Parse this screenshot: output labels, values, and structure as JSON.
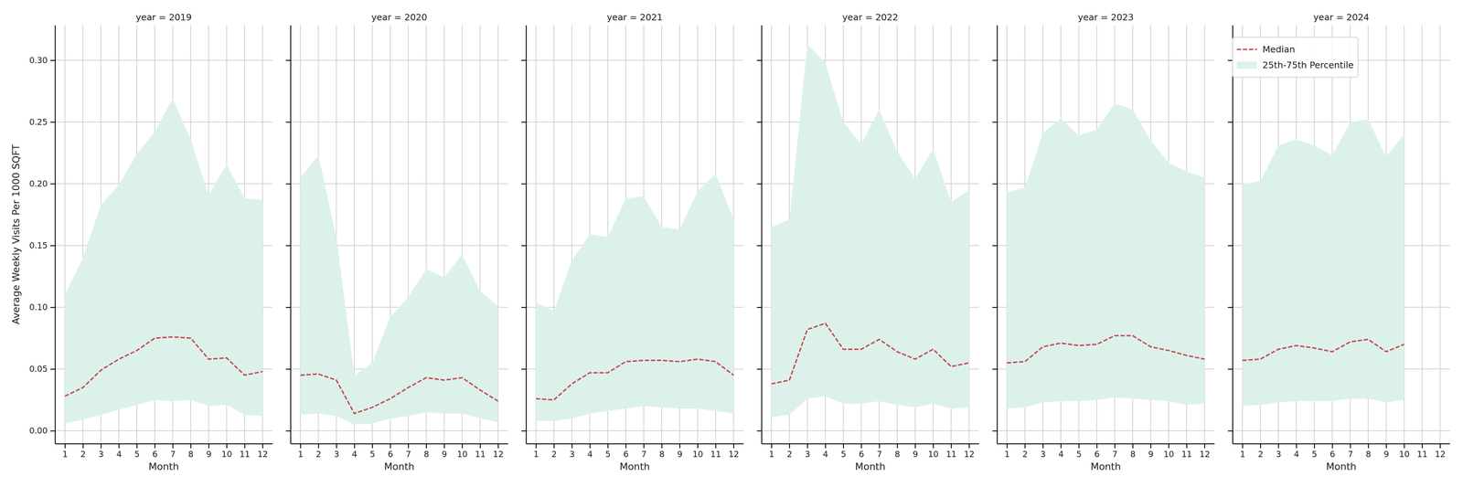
{
  "chart_data": [
    {
      "type": "line",
      "title": "year = 2019",
      "x_label": "Month",
      "y_label": "Average Weekly Visits Per 1000 SQFT",
      "x": [
        1,
        2,
        3,
        4,
        5,
        6,
        7,
        8,
        9,
        10,
        11,
        12
      ],
      "xlim": [
        0.45,
        12.55
      ],
      "ylim": [
        -0.0104,
        0.3284
      ],
      "xticks": [
        1,
        2,
        3,
        4,
        5,
        6,
        7,
        8,
        9,
        10,
        11,
        12
      ],
      "yticks": [
        {
          "value": 0,
          "label": "0.00"
        },
        {
          "value": 0.05,
          "label": "0.05"
        },
        {
          "value": 0.1,
          "label": "0.10"
        },
        {
          "value": 0.15,
          "label": "0.15"
        },
        {
          "value": 0.2,
          "label": "0.20"
        },
        {
          "value": 0.25,
          "label": "0.25"
        },
        {
          "value": 0.3,
          "label": "0.30"
        }
      ],
      "grid": true,
      "series": [
        {
          "type": "area",
          "color": "#ddf1eb",
          "lower": [
            0.006,
            0.009,
            0.013,
            0.017,
            0.021,
            0.025,
            0.024,
            0.025,
            0.02,
            0.021,
            0.013,
            0.012
          ],
          "upper": [
            0.11,
            0.14,
            0.183,
            0.199,
            0.224,
            0.242,
            0.269,
            0.236,
            0.191,
            0.216,
            0.188,
            0.187
          ]
        },
        {
          "type": "line",
          "color": "#c44e52",
          "line_style": "dashed",
          "values": [
            0.028,
            0.035,
            0.049,
            0.058,
            0.065,
            0.075,
            0.076,
            0.075,
            0.058,
            0.059,
            0.045,
            0.048
          ]
        }
      ]
    },
    {
      "type": "line",
      "title": "year = 2020",
      "x_label": "Month",
      "tick_labels": "x",
      "x": [
        1,
        2,
        3,
        4,
        5,
        6,
        7,
        8,
        9,
        10,
        11,
        12
      ],
      "xlim": [
        0.45,
        12.55
      ],
      "ylim": [
        -0.0104,
        0.3284
      ],
      "xticks": [
        1,
        2,
        3,
        4,
        5,
        6,
        7,
        8,
        9,
        10,
        11,
        12
      ],
      "yticks": [
        0,
        0.05,
        0.1,
        0.15,
        0.2,
        0.25,
        0.3
      ],
      "grid": true,
      "series": [
        {
          "type": "area",
          "color": "#ddf1eb",
          "lower": [
            0.013,
            0.014,
            0.012,
            0.005,
            0.006,
            0.01,
            0.012,
            0.015,
            0.014,
            0.014,
            0.01,
            0.007
          ],
          "upper": [
            0.205,
            0.223,
            0.157,
            0.045,
            0.055,
            0.092,
            0.108,
            0.131,
            0.124,
            0.143,
            0.113,
            0.101
          ]
        },
        {
          "type": "line",
          "color": "#c44e52",
          "line_style": "dashed",
          "values": [
            0.045,
            0.046,
            0.041,
            0.014,
            0.019,
            0.026,
            0.035,
            0.043,
            0.041,
            0.043,
            0.033,
            0.024
          ]
        }
      ]
    },
    {
      "type": "line",
      "title": "year = 2021",
      "x_label": "Month",
      "tick_labels": "x",
      "x": [
        1,
        2,
        3,
        4,
        5,
        6,
        7,
        8,
        9,
        10,
        11,
        12
      ],
      "xlim": [
        0.45,
        12.55
      ],
      "ylim": [
        -0.0104,
        0.3284
      ],
      "xticks": [
        1,
        2,
        3,
        4,
        5,
        6,
        7,
        8,
        9,
        10,
        11,
        12
      ],
      "yticks": [
        0,
        0.05,
        0.1,
        0.15,
        0.2,
        0.25,
        0.3
      ],
      "grid": true,
      "series": [
        {
          "type": "area",
          "color": "#ddf1eb",
          "lower": [
            0.008,
            0.008,
            0.01,
            0.014,
            0.016,
            0.018,
            0.02,
            0.019,
            0.018,
            0.018,
            0.016,
            0.014
          ],
          "upper": [
            0.104,
            0.097,
            0.138,
            0.159,
            0.157,
            0.188,
            0.19,
            0.165,
            0.163,
            0.194,
            0.208,
            0.171
          ]
        },
        {
          "type": "line",
          "color": "#c44e52",
          "line_style": "dashed",
          "values": [
            0.026,
            0.025,
            0.038,
            0.047,
            0.047,
            0.056,
            0.057,
            0.057,
            0.056,
            0.058,
            0.056,
            0.045
          ]
        }
      ]
    },
    {
      "type": "line",
      "title": "year = 2022",
      "x_label": "Month",
      "tick_labels": "x",
      "x": [
        1,
        2,
        3,
        4,
        5,
        6,
        7,
        8,
        9,
        10,
        11,
        12
      ],
      "xlim": [
        0.45,
        12.55
      ],
      "ylim": [
        -0.0104,
        0.3284
      ],
      "xticks": [
        1,
        2,
        3,
        4,
        5,
        6,
        7,
        8,
        9,
        10,
        11,
        12
      ],
      "yticks": [
        0,
        0.05,
        0.1,
        0.15,
        0.2,
        0.25,
        0.3
      ],
      "grid": true,
      "series": [
        {
          "type": "area",
          "color": "#ddf1eb",
          "lower": [
            0.011,
            0.013,
            0.026,
            0.028,
            0.022,
            0.022,
            0.024,
            0.021,
            0.019,
            0.022,
            0.018,
            0.019
          ],
          "upper": [
            0.165,
            0.171,
            0.313,
            0.298,
            0.25,
            0.232,
            0.26,
            0.226,
            0.204,
            0.228,
            0.185,
            0.195
          ]
        },
        {
          "type": "line",
          "color": "#c44e52",
          "line_style": "dashed",
          "values": [
            0.038,
            0.041,
            0.082,
            0.087,
            0.066,
            0.066,
            0.074,
            0.064,
            0.058,
            0.066,
            0.052,
            0.055
          ]
        }
      ]
    },
    {
      "type": "line",
      "title": "year = 2023",
      "x_label": "Month",
      "tick_labels": "x",
      "x": [
        1,
        2,
        3,
        4,
        5,
        6,
        7,
        8,
        9,
        10,
        11,
        12
      ],
      "xlim": [
        0.45,
        12.55
      ],
      "ylim": [
        -0.0104,
        0.3284
      ],
      "xticks": [
        1,
        2,
        3,
        4,
        5,
        6,
        7,
        8,
        9,
        10,
        11,
        12
      ],
      "yticks": [
        0,
        0.05,
        0.1,
        0.15,
        0.2,
        0.25,
        0.3
      ],
      "grid": true,
      "series": [
        {
          "type": "area",
          "color": "#ddf1eb",
          "lower": [
            0.018,
            0.019,
            0.023,
            0.024,
            0.024,
            0.025,
            0.027,
            0.026,
            0.025,
            0.024,
            0.021,
            0.022
          ],
          "upper": [
            0.193,
            0.197,
            0.241,
            0.253,
            0.239,
            0.244,
            0.265,
            0.26,
            0.235,
            0.217,
            0.21,
            0.205
          ]
        },
        {
          "type": "line",
          "color": "#c44e52",
          "line_style": "dashed",
          "values": [
            0.055,
            0.056,
            0.068,
            0.071,
            0.069,
            0.07,
            0.077,
            0.077,
            0.068,
            0.065,
            0.061,
            0.058
          ]
        }
      ]
    },
    {
      "type": "line",
      "title": "year = 2024",
      "x_label": "Month",
      "tick_labels": "x",
      "legend": "upper right",
      "x": [
        1,
        2,
        3,
        4,
        5,
        6,
        7,
        8,
        9,
        10
      ],
      "xlim": [
        0.45,
        12.55
      ],
      "ylim": [
        -0.0104,
        0.3284
      ],
      "xticks": [
        1,
        2,
        3,
        4,
        5,
        6,
        7,
        8,
        9,
        10,
        11,
        12
      ],
      "yticks": [
        0,
        0.05,
        0.1,
        0.15,
        0.2,
        0.25,
        0.3
      ],
      "grid": true,
      "series": [
        {
          "name": "25th-75th Percentile",
          "type": "area",
          "color": "#ddf1eb",
          "lower": [
            0.02,
            0.021,
            0.023,
            0.024,
            0.024,
            0.024,
            0.026,
            0.026,
            0.023,
            0.025
          ],
          "upper": [
            0.2,
            0.202,
            0.231,
            0.236,
            0.231,
            0.223,
            0.25,
            0.252,
            0.222,
            0.24
          ]
        },
        {
          "name": "Median",
          "type": "line",
          "color": "#c44e52",
          "line_style": "dashed",
          "values": [
            0.057,
            0.058,
            0.066,
            0.069,
            0.067,
            0.064,
            0.072,
            0.074,
            0.064,
            0.07
          ]
        }
      ]
    }
  ]
}
